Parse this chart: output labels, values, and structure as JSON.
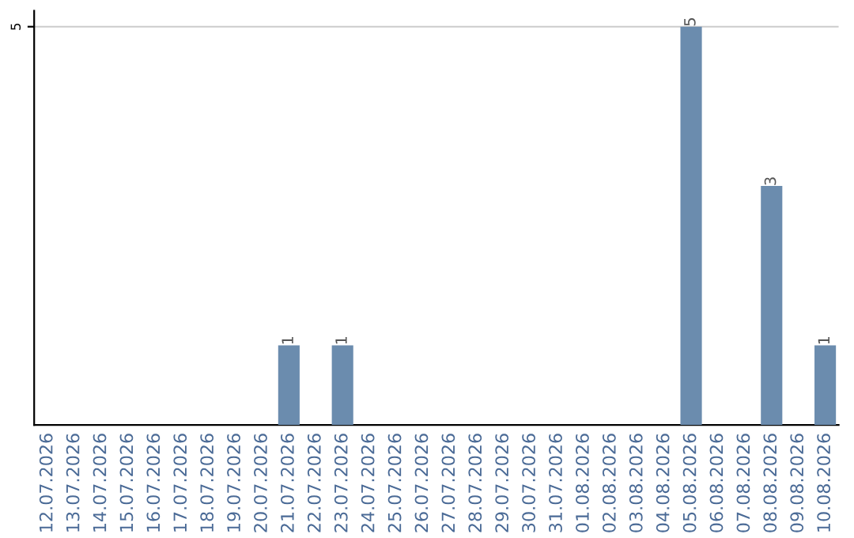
{
  "chart_data": {
    "type": "bar",
    "categories": [
      "12.07.2026",
      "13.07.2026",
      "14.07.2026",
      "15.07.2026",
      "16.07.2026",
      "17.07.2026",
      "18.07.2026",
      "19.07.2026",
      "20.07.2026",
      "21.07.2026",
      "22.07.2026",
      "23.07.2026",
      "24.07.2026",
      "25.07.2026",
      "26.07.2026",
      "27.07.2026",
      "28.07.2026",
      "29.07.2026",
      "30.07.2026",
      "31.07.2026",
      "01.08.2026",
      "02.08.2026",
      "03.08.2026",
      "04.08.2026",
      "05.08.2026",
      "06.08.2026",
      "07.08.2026",
      "08.08.2026",
      "09.08.2026",
      "10.08.2026"
    ],
    "values": [
      0,
      0,
      0,
      0,
      0,
      0,
      0,
      0,
      0,
      1,
      0,
      1,
      0,
      0,
      0,
      0,
      0,
      0,
      0,
      0,
      0,
      0,
      0,
      0,
      5,
      0,
      0,
      3,
      0,
      1
    ],
    "color": "#6b8cae",
    "ylim": [
      0,
      5.2
    ],
    "yticks": [
      5
    ],
    "grid": "y",
    "value_labels": [
      null,
      null,
      null,
      null,
      null,
      null,
      null,
      null,
      null,
      "1",
      null,
      "1",
      null,
      null,
      null,
      null,
      null,
      null,
      null,
      null,
      null,
      null,
      null,
      null,
      "5",
      null,
      null,
      "3",
      null,
      "1"
    ]
  }
}
